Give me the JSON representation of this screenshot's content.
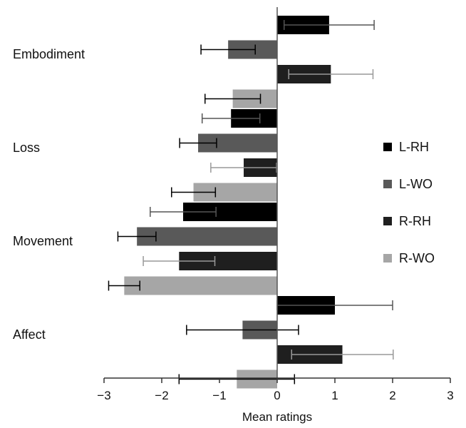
{
  "chart_data": {
    "type": "bar",
    "orientation": "horizontal",
    "xlabel": "Mean ratings",
    "xlim": [
      -3,
      3
    ],
    "xticks": [
      -3,
      -2,
      -1,
      0,
      1,
      2,
      3
    ],
    "xtick_labels": [
      "−3",
      "−2",
      "−1",
      "0",
      "1",
      "2",
      "3"
    ],
    "grid": false,
    "legend_position": "right",
    "categories": [
      "Embodiment",
      "Loss",
      "Movement",
      "Affect"
    ],
    "series": [
      {
        "name": "L-RH",
        "color": "#000000",
        "error_color": "#555555",
        "values": [
          0.9,
          -0.8,
          -1.63,
          1.0
        ],
        "errors": [
          0.78,
          0.5,
          0.57,
          1.0
        ]
      },
      {
        "name": "L-WO",
        "color": "#595959",
        "error_color": "#000000",
        "values": [
          -0.85,
          -1.37,
          -2.43,
          -0.6
        ],
        "errors": [
          0.47,
          0.32,
          0.33,
          0.97
        ]
      },
      {
        "name": "R-RH",
        "color": "#1f1f1f",
        "error_color": "#999999",
        "values": [
          0.93,
          -0.58,
          -1.7,
          1.13
        ],
        "errors": [
          0.73,
          0.57,
          0.62,
          0.88
        ]
      },
      {
        "name": "R-WO",
        "color": "#a6a6a6",
        "error_color": "#000000",
        "values": [
          -0.77,
          -1.45,
          -2.65,
          -0.7
        ],
        "errors": [
          0.48,
          0.38,
          0.27,
          1.0
        ]
      }
    ]
  }
}
